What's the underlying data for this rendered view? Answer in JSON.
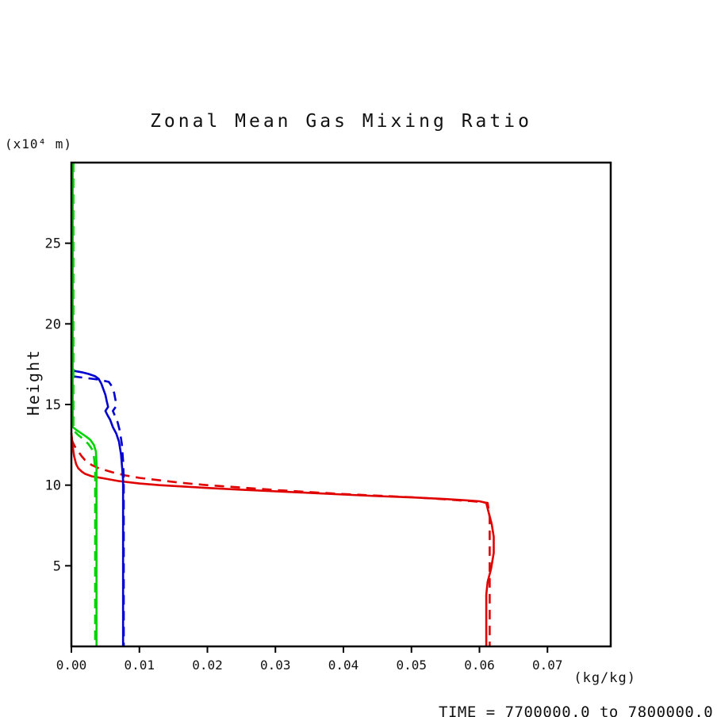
{
  "header": {
    "title": "Zonal Mean Gas Mixing Ratio"
  },
  "axes": {
    "y_unit_label": "(x10⁴ m)",
    "y_title": "Height",
    "x_unit_label": "(kg/kg)"
  },
  "footer": {
    "time_range": "TIME = 7700000.0 to 7800000.0"
  },
  "chart_data": {
    "type": "line",
    "title": "Zonal Mean Gas Mixing Ratio",
    "xlabel": "(kg/kg)",
    "ylabel": "Height (x10^4 m)",
    "xlim": [
      0,
      0.0793
    ],
    "ylim": [
      0,
      30
    ],
    "grid": false,
    "legend": null,
    "xticks": [
      0.0,
      0.01,
      0.02,
      0.03,
      0.04,
      0.05,
      0.06,
      0.07
    ],
    "xtick_labels": [
      "0.00",
      "0.01",
      "0.02",
      "0.03",
      "0.04",
      "0.05",
      "0.06",
      "0.07"
    ],
    "yticks": [
      5,
      10,
      15,
      20,
      25
    ],
    "ytick_labels": [
      "5",
      "10",
      "15",
      "20",
      "25"
    ],
    "colors": {
      "red": "#e00000",
      "blue": "#0000d0",
      "green": "#00d400",
      "frame": "#000000"
    },
    "series": [
      {
        "name": "red-solid",
        "color": "#e00000",
        "dash": "solid",
        "points": [
          [
            0.0,
            13.25
          ],
          [
            0.0002,
            12.4
          ],
          [
            0.0004,
            11.8
          ],
          [
            0.0007,
            11.3
          ],
          [
            0.001,
            11.05
          ],
          [
            0.0015,
            10.85
          ],
          [
            0.002,
            10.7
          ],
          [
            0.003,
            10.55
          ],
          [
            0.005,
            10.4
          ],
          [
            0.007,
            10.25
          ],
          [
            0.01,
            10.1
          ],
          [
            0.013,
            10.0
          ],
          [
            0.017,
            9.9
          ],
          [
            0.021,
            9.8
          ],
          [
            0.025,
            9.72
          ],
          [
            0.03,
            9.62
          ],
          [
            0.035,
            9.52
          ],
          [
            0.04,
            9.42
          ],
          [
            0.045,
            9.32
          ],
          [
            0.05,
            9.24
          ],
          [
            0.055,
            9.14
          ],
          [
            0.058,
            9.06
          ],
          [
            0.06,
            9.0
          ],
          [
            0.061,
            8.9
          ],
          [
            0.0613,
            8.4
          ],
          [
            0.0618,
            7.6
          ],
          [
            0.0621,
            6.8
          ],
          [
            0.0621,
            5.8
          ],
          [
            0.0617,
            4.8
          ],
          [
            0.0612,
            4.0
          ],
          [
            0.061,
            3.2
          ],
          [
            0.061,
            0.0
          ]
        ]
      },
      {
        "name": "red-dashed",
        "color": "#e00000",
        "dash": "dashed",
        "points": [
          [
            0.0,
            12.85
          ],
          [
            0.0005,
            12.4
          ],
          [
            0.001,
            12.1
          ],
          [
            0.0015,
            11.8
          ],
          [
            0.002,
            11.55
          ],
          [
            0.003,
            11.25
          ],
          [
            0.004,
            11.05
          ],
          [
            0.006,
            10.8
          ],
          [
            0.008,
            10.6
          ],
          [
            0.01,
            10.45
          ],
          [
            0.013,
            10.3
          ],
          [
            0.016,
            10.15
          ],
          [
            0.02,
            10.0
          ],
          [
            0.025,
            9.85
          ],
          [
            0.03,
            9.7
          ],
          [
            0.035,
            9.57
          ],
          [
            0.04,
            9.45
          ],
          [
            0.045,
            9.35
          ],
          [
            0.05,
            9.25
          ],
          [
            0.055,
            9.12
          ],
          [
            0.059,
            9.0
          ],
          [
            0.0612,
            8.9
          ],
          [
            0.0615,
            8.0
          ],
          [
            0.0615,
            0.0
          ]
        ]
      },
      {
        "name": "blue-solid",
        "color": "#0000d0",
        "dash": "solid",
        "points": [
          [
            0.0002,
            17.1
          ],
          [
            0.0015,
            17.0
          ],
          [
            0.0025,
            16.9
          ],
          [
            0.0035,
            16.75
          ],
          [
            0.004,
            16.6
          ],
          [
            0.0044,
            16.3
          ],
          [
            0.0047,
            15.95
          ],
          [
            0.005,
            15.6
          ],
          [
            0.0052,
            15.2
          ],
          [
            0.0054,
            14.85
          ],
          [
            0.005,
            14.6
          ],
          [
            0.0053,
            14.35
          ],
          [
            0.0057,
            14.05
          ],
          [
            0.0061,
            13.6
          ],
          [
            0.0066,
            13.2
          ],
          [
            0.007,
            12.7
          ],
          [
            0.0073,
            11.9
          ],
          [
            0.0075,
            10.9
          ],
          [
            0.0076,
            10.3
          ],
          [
            0.0076,
            0.0
          ]
        ]
      },
      {
        "name": "blue-dashed",
        "color": "#0000d0",
        "dash": "dashed",
        "points": [
          [
            0.0002,
            16.75
          ],
          [
            0.002,
            16.65
          ],
          [
            0.004,
            16.55
          ],
          [
            0.0055,
            16.4
          ],
          [
            0.006,
            16.1
          ],
          [
            0.0063,
            15.7
          ],
          [
            0.0065,
            15.25
          ],
          [
            0.0066,
            14.9
          ],
          [
            0.0061,
            14.6
          ],
          [
            0.0064,
            14.3
          ],
          [
            0.0068,
            13.9
          ],
          [
            0.0071,
            13.4
          ],
          [
            0.0074,
            12.6
          ],
          [
            0.0076,
            11.5
          ],
          [
            0.0077,
            10.4
          ],
          [
            0.0077,
            0.0
          ]
        ]
      },
      {
        "name": "green-solid",
        "color": "#00d400",
        "dash": "solid",
        "points": [
          [
            0.0002,
            30.0
          ],
          [
            0.0002,
            13.6
          ],
          [
            0.0008,
            13.4
          ],
          [
            0.0015,
            13.2
          ],
          [
            0.0022,
            13.0
          ],
          [
            0.0028,
            12.8
          ],
          [
            0.0033,
            12.5
          ],
          [
            0.0036,
            12.1
          ],
          [
            0.0037,
            11.4
          ],
          [
            0.0037,
            0.0
          ]
        ]
      },
      {
        "name": "green-dashed",
        "color": "#00d400",
        "dash": "dashed",
        "points": [
          [
            0.0003,
            30.0
          ],
          [
            0.0003,
            13.4
          ],
          [
            0.001,
            13.1
          ],
          [
            0.0018,
            12.85
          ],
          [
            0.0025,
            12.55
          ],
          [
            0.003,
            12.25
          ],
          [
            0.0033,
            11.8
          ],
          [
            0.0035,
            11.0
          ],
          [
            0.0035,
            0.0
          ]
        ]
      }
    ]
  }
}
